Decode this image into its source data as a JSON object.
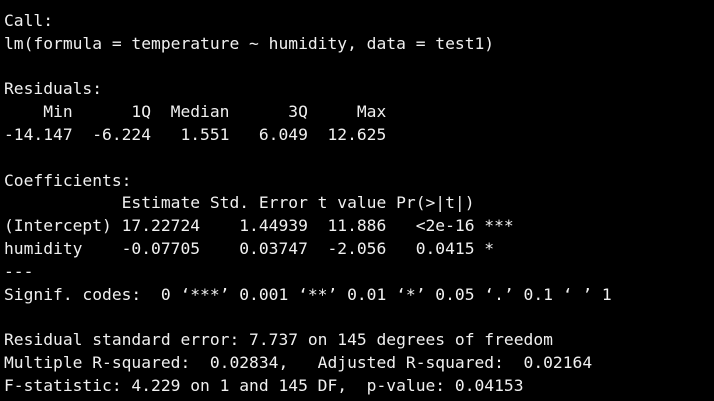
{
  "colors": {
    "background": "#000000",
    "text": "#f0f0f0"
  },
  "console": {
    "call_header": "Call:",
    "call_formula": "lm(formula = temperature ~ humidity, data = test1)",
    "residuals_header": "Residuals:",
    "residuals_labels": "    Min      1Q  Median      3Q     Max ",
    "residuals_values": "-14.147  -6.224   1.551   6.049  12.625 ",
    "coefficients_header": "Coefficients:",
    "coef_columns": "            Estimate Std. Error t value Pr(>|t|)    ",
    "coef_row_intercept": "(Intercept) 17.22724    1.44939  11.886   <2e-16 ***",
    "coef_row_humidity": "humidity    -0.07705    0.03747  -2.056   0.0415 *  ",
    "separator": "---",
    "signif_codes": "Signif. codes:  0 ‘***’ 0.001 ‘**’ 0.01 ‘*’ 0.05 ‘.’ 0.1 ‘ ’ 1",
    "residual_se": "Residual standard error: 7.737 on 145 degrees of freedom",
    "r_squared": "Multiple R-squared:  0.02834,\tAdjusted R-squared:  0.02164 ",
    "f_statistic": "F-statistic: 4.229 on 1 and 145 DF,  p-value: 0.04153"
  }
}
